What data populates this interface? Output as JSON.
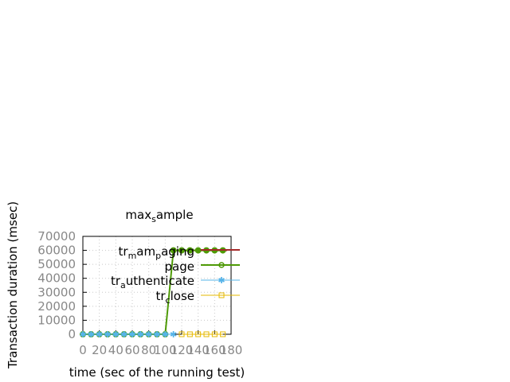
{
  "chart_data": {
    "type": "line",
    "title": "max_sample",
    "xlabel": "time (sec of the running test)",
    "ylabel": "Transaction duration (msec)",
    "xlim": [
      0,
      180
    ],
    "ylim": [
      0,
      70000
    ],
    "xticks": [
      "0",
      "20",
      "40",
      "60",
      "80",
      "100",
      "120",
      "140",
      "160",
      "180"
    ],
    "yticks": [
      "0",
      "10000",
      "20000",
      "30000",
      "40000",
      "50000",
      "60000",
      "70000"
    ],
    "grid": true,
    "legend_position": "top-right",
    "series": [
      {
        "name": "tr_mam_paging",
        "color": "#a52a2a",
        "marker": "none",
        "x": [
          115,
          175
        ],
        "y": [
          60000,
          60000
        ]
      },
      {
        "name": "page",
        "color": "#4e9a06",
        "marker": "circle",
        "x": [
          0,
          10,
          20,
          30,
          40,
          50,
          60,
          70,
          80,
          90,
          100,
          110,
          120,
          130,
          140,
          150,
          160,
          170
        ],
        "y": [
          0,
          0,
          0,
          0,
          0,
          0,
          0,
          0,
          0,
          0,
          0,
          60000,
          60000,
          60000,
          60000,
          60000,
          60000,
          60000
        ]
      },
      {
        "name": "tr_authenticate",
        "color": "#56b4e9",
        "marker": "star",
        "x": [
          0,
          10,
          20,
          30,
          40,
          50,
          60,
          70,
          80,
          90,
          100,
          110
        ],
        "y": [
          0,
          0,
          0,
          0,
          0,
          0,
          0,
          0,
          0,
          0,
          0,
          0
        ]
      },
      {
        "name": "tr_close",
        "color": "#e6b800",
        "marker": "square",
        "x": [
          120,
          130,
          140,
          150,
          160,
          170
        ],
        "y": [
          0,
          0,
          0,
          0,
          0,
          0
        ]
      }
    ]
  }
}
